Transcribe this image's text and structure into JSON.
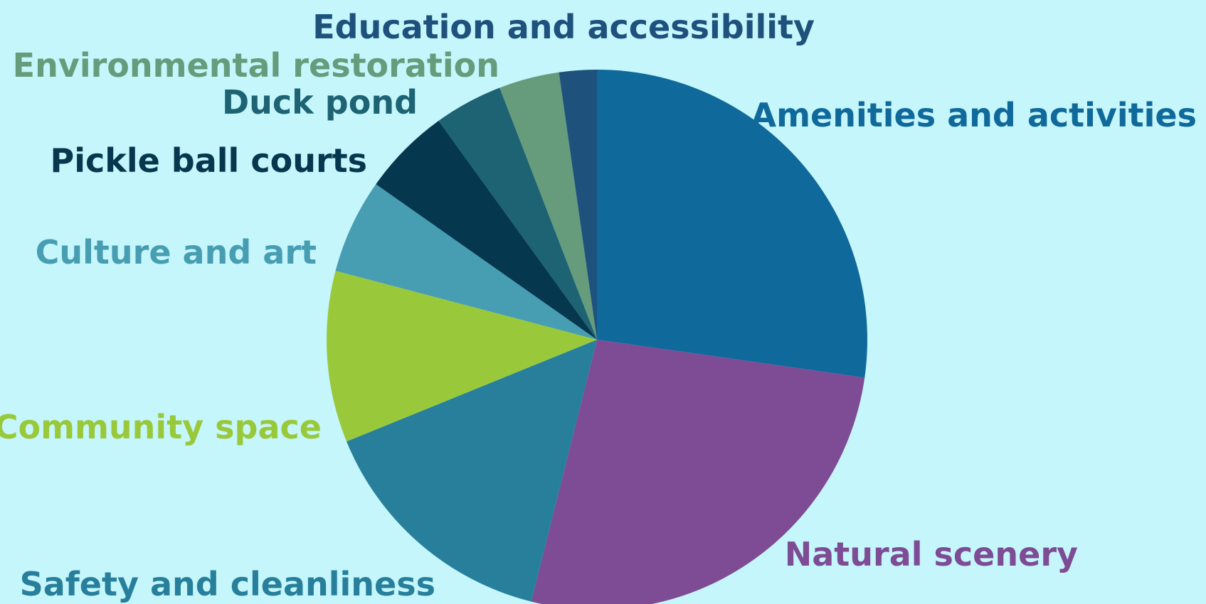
{
  "chart_data": {
    "type": "pie",
    "start_angle_deg": 0,
    "direction": "clockwise",
    "legend": "none",
    "slices": [
      {
        "label": "Amenities and activities",
        "value": 27.9,
        "color": "#10699b"
      },
      {
        "label": "Natural scenery",
        "value": 27.3,
        "color": "#7e4b95"
      },
      {
        "label": "Safety and cleanliness",
        "value": 15.3,
        "color": "#277f9b"
      },
      {
        "label": "Community space",
        "value": 10.5,
        "color": "#99c93b"
      },
      {
        "label": "Culture and art",
        "value": 5.8,
        "color": "#479db2"
      },
      {
        "label": "Pickle ball courts",
        "value": 5.4,
        "color": "#05374e"
      },
      {
        "label": "Duck pond",
        "value": 4.2,
        "color": "#1d6373"
      },
      {
        "label": "Environmental restoration",
        "value": 3.7,
        "color": "#669b7c"
      },
      {
        "label": "Education and accessibility",
        "value": 2.3,
        "color": "#1e527d"
      }
    ]
  }
}
